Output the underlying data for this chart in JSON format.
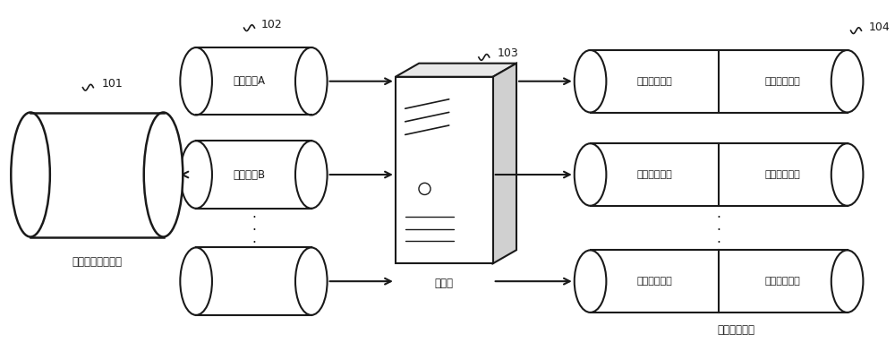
{
  "bg_color": "#ffffff",
  "line_color": "#1a1a1a",
  "text_color": "#1a1a1a",
  "font_size_small": 8.5,
  "font_size_ref": 9,
  "font_size_dots": 11,
  "label_101": "资源处理节点集合",
  "label_102": "102",
  "label_103": "103",
  "label_104": "104",
  "label_101_ref": "101",
  "label_server": "服务器",
  "label_result": "异常检测结果",
  "node_A": "节点类别A",
  "node_B": "节点类别B",
  "cyl_anomaly": "资源处理异常",
  "cyl_normal": "资源处理正常"
}
